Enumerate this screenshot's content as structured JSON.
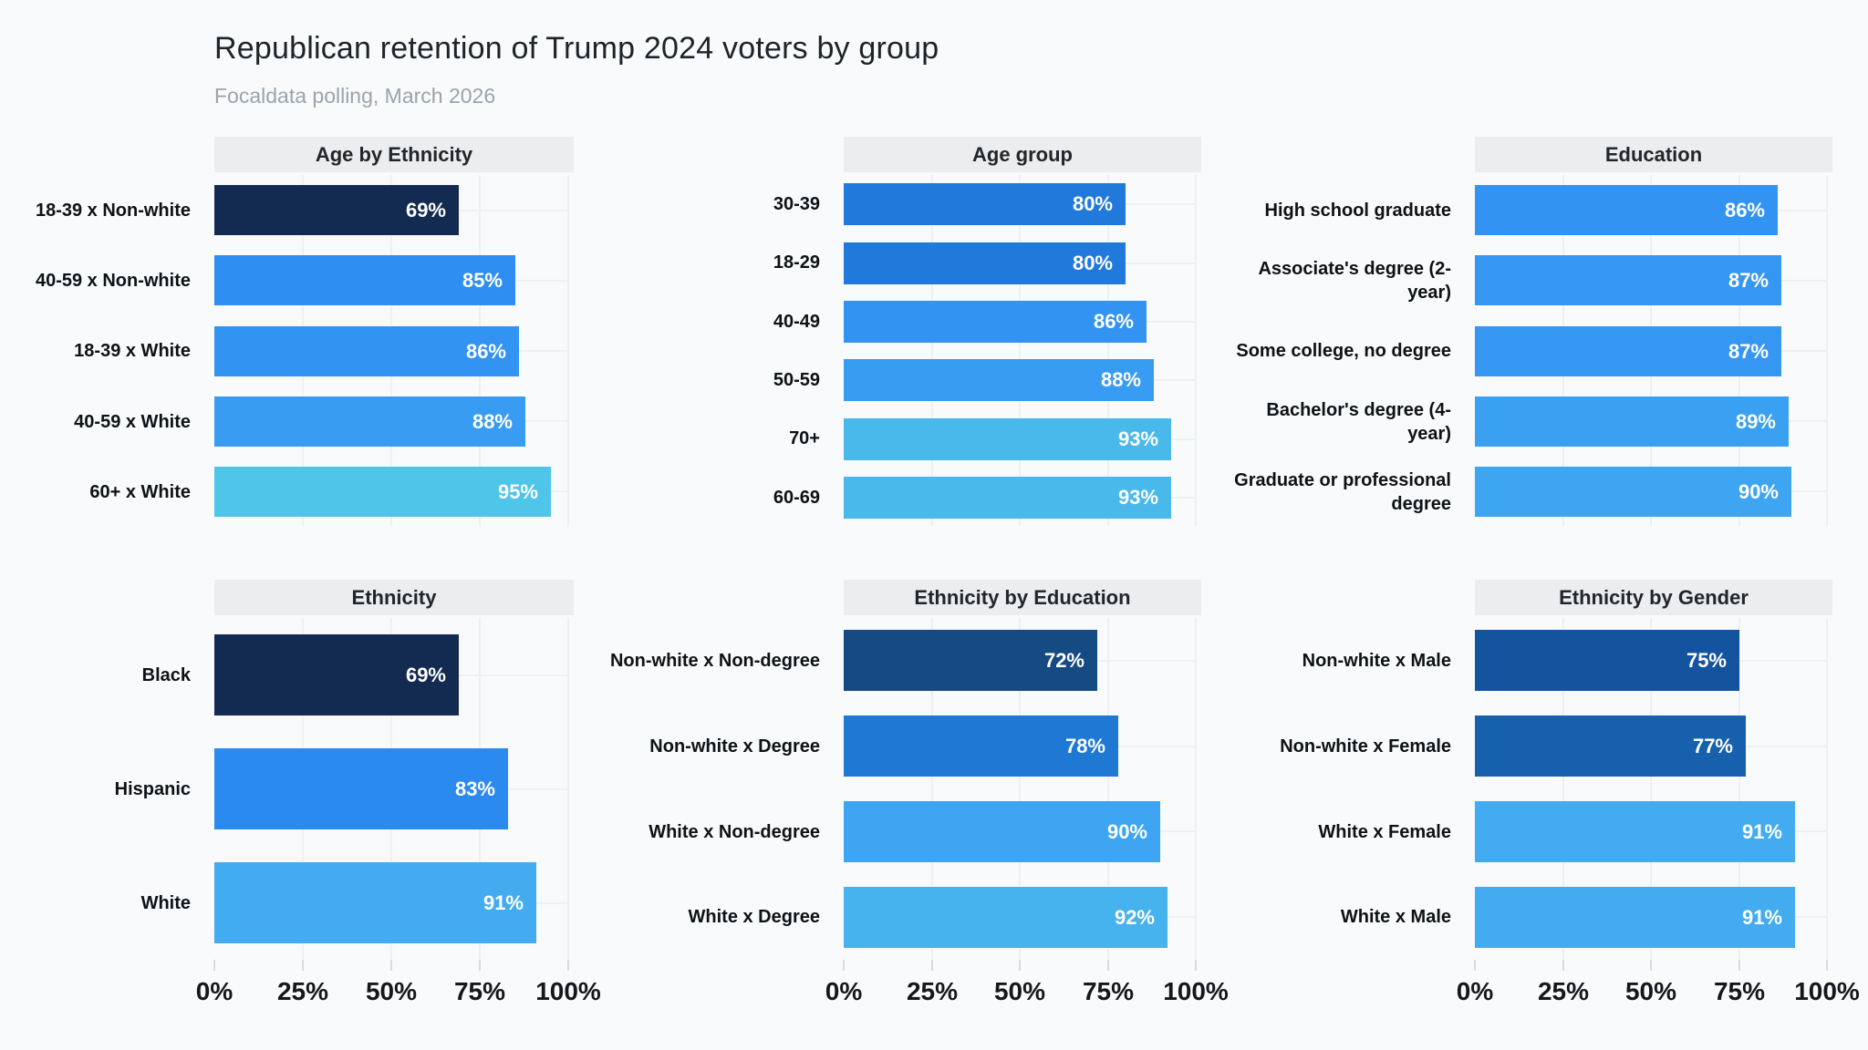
{
  "page": {
    "title": "Republican retention of Trump 2024 voters by group",
    "subtitle": "Focaldata polling, March 2026",
    "background_color": "#f8fafb",
    "header_band_color": "#ebedee"
  },
  "axis": {
    "ticks": [
      "0%",
      "25%",
      "50%",
      "75%",
      "100%"
    ],
    "tick_values": [
      0,
      25,
      50,
      75,
      100
    ],
    "range": [
      0,
      100
    ],
    "shared": true,
    "position": "bottom"
  },
  "chart_data": [
    {
      "type": "bar",
      "orientation": "horizontal",
      "title": "Age by Ethnicity",
      "categories": [
        "18-39 x Non-white",
        "40-59 x Non-white",
        "18-39 x White",
        "40-59 x White",
        "60+ x White"
      ],
      "values": [
        69,
        85,
        86,
        88,
        95
      ],
      "labels": [
        "69%",
        "85%",
        "86%",
        "88%",
        "95%"
      ],
      "colors": [
        "#132b50",
        "#2f8ef2",
        "#3393f3",
        "#389cf2",
        "#4ec5e9"
      ],
      "xlim": [
        0,
        100
      ],
      "grid": true
    },
    {
      "type": "bar",
      "orientation": "horizontal",
      "title": "Age group",
      "categories": [
        "30-39",
        "18-29",
        "40-49",
        "50-59",
        "70+",
        "60-69"
      ],
      "values": [
        80,
        80,
        86,
        88,
        93,
        93
      ],
      "labels": [
        "80%",
        "80%",
        "86%",
        "88%",
        "93%",
        "93%"
      ],
      "colors": [
        "#2179dc",
        "#2179dc",
        "#3393f3",
        "#389cf2",
        "#49b9ec",
        "#49b9ec"
      ],
      "xlim": [
        0,
        100
      ],
      "grid": true
    },
    {
      "type": "bar",
      "orientation": "horizontal",
      "title": "Education",
      "categories": [
        "High school graduate",
        "Associate's degree (2-year)",
        "Some college, no degree",
        "Bachelor's degree (4-year)",
        "Graduate or professional degree"
      ],
      "values": [
        86,
        87,
        87,
        89,
        90
      ],
      "labels": [
        "86%",
        "87%",
        "87%",
        "89%",
        "90%"
      ],
      "colors": [
        "#3393f3",
        "#3697f2",
        "#3697f2",
        "#3aa0f1",
        "#3da5f1"
      ],
      "xlim": [
        0,
        100
      ],
      "grid": true
    },
    {
      "type": "bar",
      "orientation": "horizontal",
      "title": "Ethnicity",
      "categories": [
        "Black",
        "Hispanic",
        "White"
      ],
      "values": [
        69,
        83,
        91
      ],
      "labels": [
        "69%",
        "83%",
        "91%"
      ],
      "colors": [
        "#132b50",
        "#2b8af0",
        "#43acf0"
      ],
      "xlim": [
        0,
        100
      ],
      "grid": true
    },
    {
      "type": "bar",
      "orientation": "horizontal",
      "title": "Ethnicity by Education",
      "categories": [
        "Non-white x Non-degree",
        "Non-white x Degree",
        "White x Non-degree",
        "White x Degree"
      ],
      "values": [
        72,
        78,
        90,
        92
      ],
      "labels": [
        "72%",
        "78%",
        "90%",
        "92%"
      ],
      "colors": [
        "#164a82",
        "#1e78d4",
        "#3da5f1",
        "#46b2ee"
      ],
      "xlim": [
        0,
        100
      ],
      "grid": true
    },
    {
      "type": "bar",
      "orientation": "horizontal",
      "title": "Ethnicity by Gender",
      "categories": [
        "Non-white x Male",
        "Non-white x Female",
        "White x Female",
        "White x Male"
      ],
      "values": [
        75,
        77,
        91,
        91
      ],
      "labels": [
        "75%",
        "77%",
        "91%",
        "91%"
      ],
      "colors": [
        "#14549e",
        "#1660ae",
        "#43acf0",
        "#43acf0"
      ],
      "xlim": [
        0,
        100
      ],
      "grid": true
    }
  ]
}
